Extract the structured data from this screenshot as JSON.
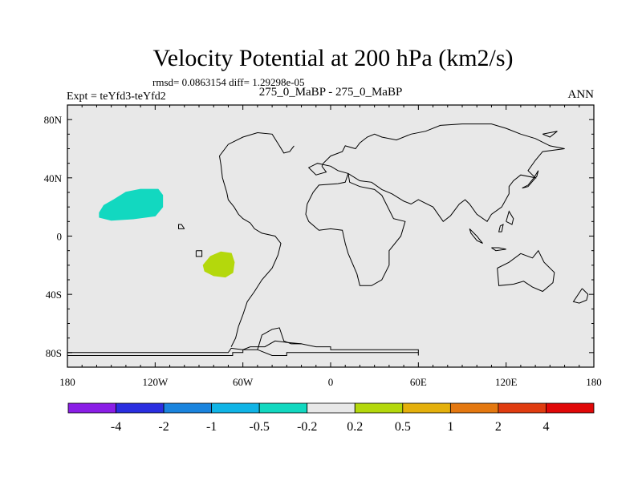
{
  "chart_data": {
    "type": "contour-map",
    "title": "Velocity Potential at 200 hPa (km2/s)",
    "stats_line": "rmsd= 0.0863154 diff= 1.29298e-05",
    "left_subtitle": "Expt = teYfd3-teYfd2",
    "center_subtitle": "275_0_MaBP - 275_0_MaBP",
    "right_subtitle": "ANN",
    "x_ticks": [
      {
        "value": -180,
        "label": "180"
      },
      {
        "value": -120,
        "label": "120W"
      },
      {
        "value": -60,
        "label": "60W"
      },
      {
        "value": 0,
        "label": "0"
      },
      {
        "value": 60,
        "label": "60E"
      },
      {
        "value": 120,
        "label": "120E"
      },
      {
        "value": 180,
        "label": "180"
      }
    ],
    "y_ticks": [
      {
        "value": 80,
        "label": "80N"
      },
      {
        "value": 40,
        "label": "40N"
      },
      {
        "value": 0,
        "label": "0"
      },
      {
        "value": -40,
        "label": "40S"
      },
      {
        "value": -80,
        "label": "80S"
      }
    ],
    "xlim": [
      -180,
      180
    ],
    "ylim": [
      -90,
      90
    ],
    "colorbar": {
      "levels": [
        "-4",
        "-2",
        "-1",
        "-0.5",
        "-0.2",
        "0.2",
        "0.5",
        "1",
        "2",
        "4"
      ],
      "colors": [
        "#8a1ee6",
        "#2a2ee0",
        "#1a84de",
        "#10b4e6",
        "#12d8c0",
        "#e8e8e8",
        "#b4d80c",
        "#e4b00c",
        "#e47810",
        "#e03c10",
        "#e00808"
      ]
    },
    "background_color": "#e8e8e8",
    "regions": [
      {
        "name": "negative-anomaly-pacific",
        "bin": "-0.5 to -0.2",
        "color": "#12d8c0",
        "outline": [
          [
            -158,
            16
          ],
          [
            -155,
            21
          ],
          [
            -148,
            25
          ],
          [
            -140,
            30
          ],
          [
            -130,
            32
          ],
          [
            -118,
            32
          ],
          [
            -115,
            28
          ],
          [
            -115,
            20
          ],
          [
            -120,
            14
          ],
          [
            -135,
            12
          ],
          [
            -150,
            11
          ],
          [
            -158,
            13
          ]
        ]
      },
      {
        "name": "positive-anomaly-south-america",
        "bin": "0.2 to 0.5",
        "color": "#b4d80c",
        "outline": [
          [
            -87,
            -20
          ],
          [
            -82,
            -14
          ],
          [
            -75,
            -11
          ],
          [
            -68,
            -12
          ],
          [
            -66,
            -18
          ],
          [
            -67,
            -25
          ],
          [
            -72,
            -28
          ],
          [
            -80,
            -27
          ],
          [
            -86,
            -24
          ]
        ]
      }
    ],
    "coastlines": [
      [
        [
          -180,
          -80
        ],
        [
          -70,
          -80
        ],
        [
          -68,
          -77
        ],
        [
          -60,
          -78
        ],
        [
          -55,
          -76
        ],
        [
          -45,
          -76
        ],
        [
          -38,
          -72
        ],
        [
          -30,
          -73
        ],
        [
          -20,
          -74
        ],
        [
          -10,
          -76
        ],
        [
          0,
          -76
        ],
        [
          0,
          -78
        ],
        [
          60,
          -78
        ],
        [
          60,
          -80
        ]
      ],
      [
        [
          -180,
          -82
        ],
        [
          -67,
          -82
        ],
        [
          -67,
          -80
        ],
        [
          -60,
          -80
        ],
        [
          -60,
          -78
        ],
        [
          -50,
          -78
        ],
        [
          -40,
          -82
        ],
        [
          -30,
          -82
        ],
        [
          -30,
          -80
        ],
        [
          -20,
          -80
        ],
        [
          60,
          -80
        ],
        [
          60,
          -82
        ]
      ],
      [
        [
          -68,
          -76
        ],
        [
          -65,
          -70
        ],
        [
          -63,
          -62
        ],
        [
          -60,
          -54
        ],
        [
          -57,
          -45
        ],
        [
          -52,
          -38
        ],
        [
          -47,
          -30
        ],
        [
          -40,
          -22
        ],
        [
          -36,
          -13
        ],
        [
          -34,
          -5
        ],
        [
          -38,
          0
        ],
        [
          -47,
          2
        ],
        [
          -52,
          5
        ],
        [
          -55,
          9
        ],
        [
          -60,
          12
        ],
        [
          -63,
          15
        ],
        [
          -66,
          20
        ],
        [
          -70,
          25
        ],
        [
          -71,
          30
        ],
        [
          -74,
          40
        ],
        [
          -75,
          49
        ],
        [
          -76,
          55
        ],
        [
          -70,
          63
        ],
        [
          -60,
          68
        ],
        [
          -50,
          71
        ],
        [
          -40,
          70
        ],
        [
          -35,
          62
        ],
        [
          -32,
          57
        ],
        [
          -28,
          58
        ],
        [
          -25,
          62
        ]
      ],
      [
        [
          -50,
          -78
        ],
        [
          -47,
          -68
        ],
        [
          -40,
          -64
        ],
        [
          -35,
          -63
        ],
        [
          -32,
          -72
        ],
        [
          -27,
          -74
        ],
        [
          -20,
          -74
        ]
      ],
      [
        [
          -6,
          48
        ],
        [
          -3,
          44
        ],
        [
          -10,
          42
        ],
        [
          -15,
          47
        ],
        [
          -9,
          50
        ],
        [
          0,
          48
        ],
        [
          5,
          45
        ],
        [
          12,
          43
        ],
        [
          20,
          38
        ],
        [
          28,
          37
        ],
        [
          35,
          32
        ],
        [
          42,
          29
        ],
        [
          50,
          24
        ],
        [
          55,
          22
        ],
        [
          60,
          25
        ],
        [
          70,
          20
        ],
        [
          77,
          10
        ],
        [
          82,
          14
        ],
        [
          88,
          22
        ],
        [
          92,
          25
        ],
        [
          95,
          22
        ],
        [
          100,
          15
        ],
        [
          107,
          10
        ],
        [
          110,
          15
        ],
        [
          117,
          20
        ],
        [
          122,
          29
        ],
        [
          122,
          34
        ],
        [
          125,
          38
        ],
        [
          130,
          42
        ],
        [
          140,
          40
        ],
        [
          135,
          45
        ],
        [
          140,
          52
        ],
        [
          145,
          58
        ],
        [
          160,
          60
        ],
        [
          150,
          62
        ],
        [
          140,
          67
        ],
        [
          130,
          70
        ],
        [
          120,
          74
        ],
        [
          110,
          77
        ],
        [
          90,
          77
        ],
        [
          75,
          76
        ],
        [
          65,
          72
        ],
        [
          55,
          70
        ],
        [
          45,
          66
        ],
        [
          35,
          68
        ],
        [
          30,
          70
        ],
        [
          25,
          68
        ],
        [
          20,
          64
        ],
        [
          17,
          60
        ],
        [
          10,
          62
        ],
        [
          8,
          58
        ],
        [
          0,
          55
        ],
        [
          -5,
          50
        ],
        [
          -6,
          48
        ]
      ],
      [
        [
          12,
          43
        ],
        [
          13,
          37
        ],
        [
          20,
          34
        ],
        [
          30,
          32
        ],
        [
          35,
          28
        ],
        [
          43,
          12
        ],
        [
          51,
          10
        ],
        [
          48,
          0
        ],
        [
          40,
          -10
        ],
        [
          40,
          -20
        ],
        [
          35,
          -30
        ],
        [
          28,
          -34
        ],
        [
          20,
          -34
        ],
        [
          18,
          -26
        ],
        [
          12,
          -12
        ],
        [
          10,
          -5
        ],
        [
          8,
          4
        ],
        [
          0,
          5
        ],
        [
          -8,
          4
        ],
        [
          -15,
          10
        ],
        [
          -17,
          15
        ],
        [
          -16,
          22
        ],
        [
          -12,
          30
        ],
        [
          -8,
          35
        ],
        [
          5,
          36
        ],
        [
          10,
          37
        ],
        [
          12,
          43
        ]
      ],
      [
        [
          114,
          -22
        ],
        [
          115,
          -34
        ],
        [
          125,
          -33
        ],
        [
          132,
          -31
        ],
        [
          138,
          -35
        ],
        [
          145,
          -38
        ],
        [
          152,
          -32
        ],
        [
          153,
          -25
        ],
        [
          146,
          -18
        ],
        [
          142,
          -10
        ],
        [
          138,
          -15
        ],
        [
          130,
          -12
        ],
        [
          122,
          -18
        ],
        [
          114,
          -22
        ]
      ],
      [
        [
          172,
          -36
        ],
        [
          176,
          -40
        ],
        [
          175,
          -44
        ],
        [
          170,
          -46
        ],
        [
          166,
          -45
        ],
        [
          172,
          -36
        ]
      ],
      [
        [
          95,
          5
        ],
        [
          100,
          0
        ],
        [
          104,
          -5
        ],
        [
          100,
          -3
        ],
        [
          96,
          2
        ],
        [
          95,
          5
        ]
      ],
      [
        [
          110,
          -8
        ],
        [
          115,
          -8
        ],
        [
          120,
          -9
        ],
        [
          113,
          -10
        ],
        [
          110,
          -8
        ]
      ],
      [
        [
          117,
          3
        ],
        [
          118,
          8
        ],
        [
          116,
          7
        ],
        [
          115,
          3
        ],
        [
          117,
          3
        ]
      ],
      [
        [
          120,
          10
        ],
        [
          122,
          17
        ],
        [
          125,
          12
        ],
        [
          124,
          8
        ],
        [
          120,
          10
        ]
      ],
      [
        [
          131,
          33
        ],
        [
          135,
          34
        ],
        [
          141,
          41
        ],
        [
          142,
          45
        ],
        [
          139,
          40
        ],
        [
          135,
          35
        ],
        [
          131,
          33
        ]
      ],
      [
        [
          -92,
          -10
        ],
        [
          -92,
          -14
        ],
        [
          -88,
          -14
        ],
        [
          -88,
          -10
        ],
        [
          -92,
          -10
        ]
      ],
      [
        [
          -100,
          5
        ],
        [
          -102,
          8
        ],
        [
          -104,
          8
        ],
        [
          -104,
          5
        ],
        [
          -100,
          5
        ]
      ],
      [
        [
          145,
          70
        ],
        [
          155,
          72
        ],
        [
          150,
          68
        ],
        [
          145,
          70
        ]
      ]
    ]
  }
}
